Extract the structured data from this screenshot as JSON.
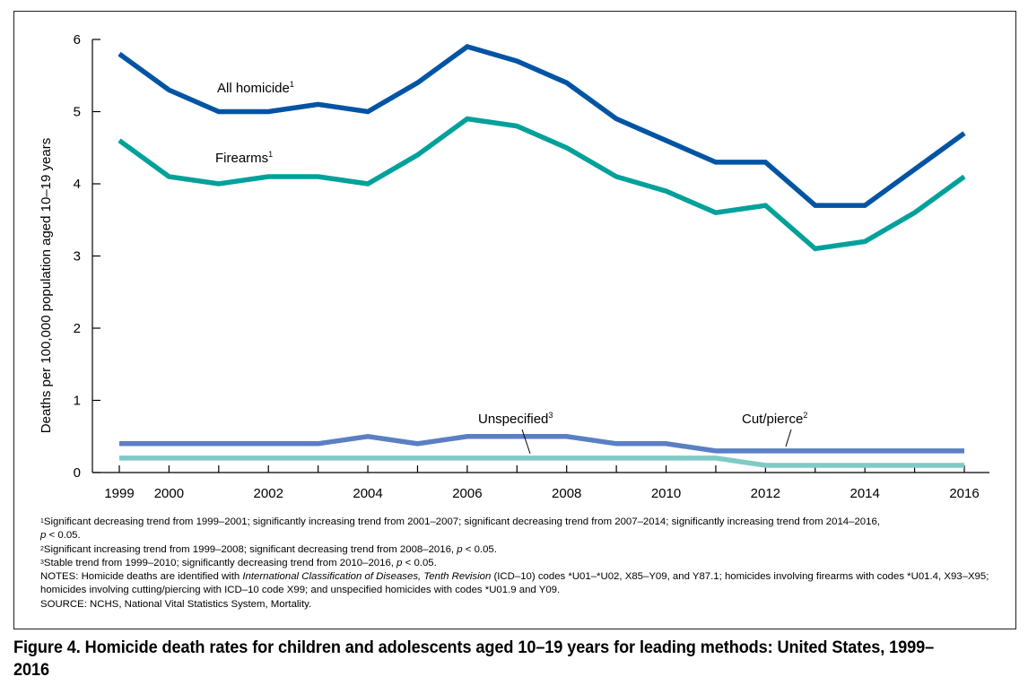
{
  "chart_data": {
    "type": "line",
    "x": [
      1999,
      2000,
      2001,
      2002,
      2003,
      2004,
      2005,
      2006,
      2007,
      2008,
      2009,
      2010,
      2011,
      2012,
      2013,
      2014,
      2015,
      2016
    ],
    "x_tick_labels": [
      "1999",
      "2000",
      "2002",
      "2004",
      "2006",
      "2008",
      "2010",
      "2012",
      "2014",
      "2016"
    ],
    "xlim": [
      1999,
      2016
    ],
    "ylim": [
      0,
      6
    ],
    "y_ticks": [
      0,
      1,
      2,
      3,
      4,
      5,
      6
    ],
    "ylabel": "Deaths per 100,000 population aged 10–19 years",
    "xlabel": "",
    "series": [
      {
        "name": "All homicide",
        "sup": "1",
        "color": "#0054a4",
        "values": [
          5.8,
          5.3,
          5.0,
          5.0,
          5.1,
          5.0,
          5.4,
          5.9,
          5.7,
          5.4,
          4.9,
          4.6,
          4.3,
          4.3,
          3.7,
          3.7,
          4.2,
          4.7
        ]
      },
      {
        "name": "Firearms",
        "sup": "1",
        "color": "#00a19a",
        "values": [
          4.6,
          4.1,
          4.0,
          4.1,
          4.1,
          4.0,
          4.4,
          4.9,
          4.8,
          4.5,
          4.1,
          3.9,
          3.6,
          3.7,
          3.1,
          3.2,
          3.6,
          4.1
        ]
      },
      {
        "name": "Unspecified",
        "sup": "3",
        "color": "#5b7fc4",
        "values": [
          0.4,
          0.4,
          0.4,
          0.4,
          0.4,
          0.5,
          0.4,
          0.5,
          0.5,
          0.5,
          0.4,
          0.4,
          0.3,
          0.3,
          0.3,
          0.3,
          0.3,
          0.3
        ]
      },
      {
        "name": "Cut/pierce",
        "sup": "2",
        "color": "#7fcac4",
        "values": [
          0.2,
          0.2,
          0.2,
          0.2,
          0.2,
          0.2,
          0.2,
          0.2,
          0.2,
          0.2,
          0.2,
          0.2,
          0.2,
          0.1,
          0.1,
          0.1,
          0.1,
          0.1
        ]
      }
    ],
    "labels": [
      {
        "series": 0,
        "text": "All homicide",
        "sup": "1"
      },
      {
        "series": 1,
        "text": "Firearms",
        "sup": "1"
      },
      {
        "series": 2,
        "text": "Unspecified",
        "sup": "3"
      },
      {
        "series": 3,
        "text": "Cut/pierce",
        "sup": "2"
      }
    ]
  },
  "notes": {
    "fn1_sup": "1",
    "fn1": "Significant decreasing trend from 1999–2001; significantly increasing trend from 2001–2007; significant decreasing trend from 2007–2014; significantly increasing trend from 2014–2016,",
    "fn1_p": "p",
    "fn1_end": " < 0.05.",
    "fn2_sup": "2",
    "fn2": "Significant increasing trend from 1999–2008; significant decreasing trend from 2008–2016, ",
    "fn2_p": "p",
    "fn2_end": " < 0.05.",
    "fn3_sup": "3",
    "fn3": "Stable trend from 1999–2010; significantly decreasing trend from 2010–2016, ",
    "fn3_p": "p",
    "fn3_end": " < 0.05.",
    "notes_a": "NOTES: Homicide deaths are identified with ",
    "notes_italic": "International Classification of Diseases, Tenth Revision",
    "notes_b": " (ICD–10) codes *U01–*U02, X85–Y09, and Y87.1; homicides involving firearms with codes *U01.4, X93–X95; homicides involving cutting/piercing with ICD–10 code X99; and unspecified homicides with codes *U01.9 and Y09.",
    "source": "SOURCE: NCHS, National Vital Statistics System, Mortality."
  },
  "caption": "Figure 4. Homicide death rates for children and adolescents aged 10–19 years for leading methods: United States, 1999–2016"
}
